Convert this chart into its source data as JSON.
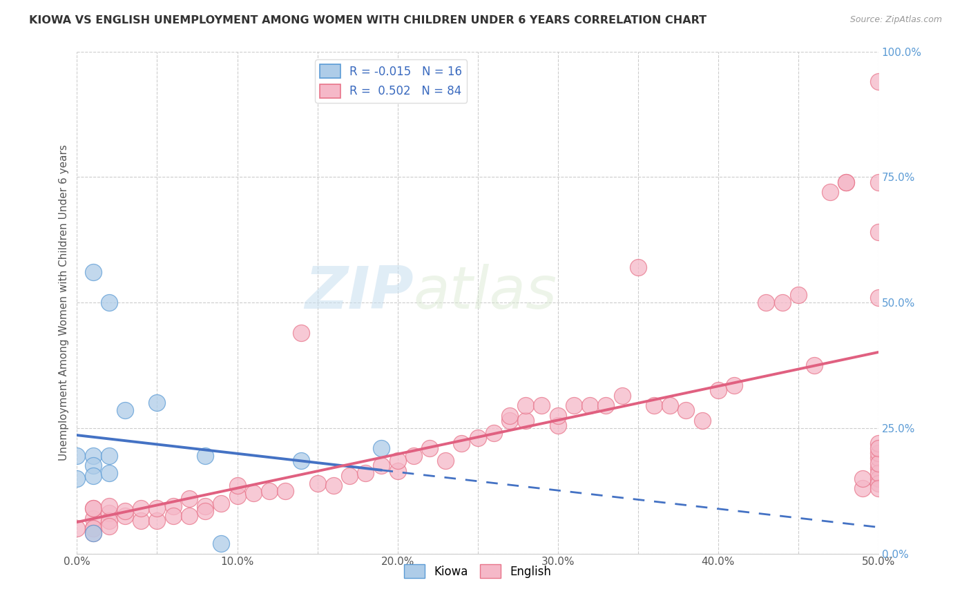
{
  "title": "KIOWA VS ENGLISH UNEMPLOYMENT AMONG WOMEN WITH CHILDREN UNDER 6 YEARS CORRELATION CHART",
  "source": "Source: ZipAtlas.com",
  "ylabel": "Unemployment Among Women with Children Under 6 years",
  "xlim": [
    0.0,
    0.5
  ],
  "ylim": [
    0.0,
    1.0
  ],
  "xtick_labels": [
    "0.0%",
    "",
    "10.0%",
    "",
    "20.0%",
    "",
    "30.0%",
    "",
    "40.0%",
    "",
    "50.0%"
  ],
  "xtick_vals": [
    0.0,
    0.05,
    0.1,
    0.15,
    0.2,
    0.25,
    0.3,
    0.35,
    0.4,
    0.45,
    0.5
  ],
  "ytick_labels": [
    "0.0%",
    "25.0%",
    "50.0%",
    "75.0%",
    "100.0%"
  ],
  "ytick_vals": [
    0.0,
    0.25,
    0.5,
    0.75,
    1.0
  ],
  "kiowa_color": "#aecce8",
  "english_color": "#f5b8c8",
  "kiowa_edge_color": "#5b9bd5",
  "english_edge_color": "#e8748a",
  "kiowa_line_color": "#4472c4",
  "english_line_color": "#e06080",
  "watermark_zip": "ZIP",
  "watermark_atlas": "atlas",
  "legend_r_kiowa": "-0.015",
  "legend_n_kiowa": "16",
  "legend_r_english": "0.502",
  "legend_n_english": "84",
  "kiowa_x": [
    0.01,
    0.02,
    0.0,
    0.0,
    0.01,
    0.01,
    0.01,
    0.01,
    0.02,
    0.02,
    0.03,
    0.05,
    0.08,
    0.09,
    0.14,
    0.19
  ],
  "kiowa_y": [
    0.56,
    0.5,
    0.195,
    0.15,
    0.195,
    0.175,
    0.155,
    0.04,
    0.195,
    0.16,
    0.285,
    0.3,
    0.195,
    0.02,
    0.185,
    0.21
  ],
  "english_x": [
    0.0,
    0.01,
    0.01,
    0.01,
    0.01,
    0.01,
    0.01,
    0.02,
    0.02,
    0.02,
    0.02,
    0.03,
    0.03,
    0.04,
    0.04,
    0.05,
    0.05,
    0.06,
    0.06,
    0.07,
    0.07,
    0.08,
    0.08,
    0.09,
    0.1,
    0.1,
    0.11,
    0.12,
    0.13,
    0.14,
    0.15,
    0.16,
    0.17,
    0.18,
    0.19,
    0.2,
    0.2,
    0.21,
    0.22,
    0.23,
    0.24,
    0.25,
    0.26,
    0.27,
    0.27,
    0.28,
    0.28,
    0.29,
    0.3,
    0.3,
    0.31,
    0.32,
    0.33,
    0.34,
    0.35,
    0.36,
    0.37,
    0.38,
    0.39,
    0.4,
    0.41,
    0.43,
    0.44,
    0.45,
    0.46,
    0.47,
    0.48,
    0.48,
    0.49,
    0.49,
    0.5,
    0.5,
    0.5,
    0.5,
    0.5,
    0.5,
    0.5,
    0.5,
    0.5,
    0.5,
    0.5,
    0.5,
    0.5,
    0.5
  ],
  "english_y": [
    0.05,
    0.05,
    0.07,
    0.09,
    0.09,
    0.05,
    0.04,
    0.08,
    0.065,
    0.055,
    0.095,
    0.075,
    0.085,
    0.065,
    0.09,
    0.065,
    0.09,
    0.095,
    0.075,
    0.11,
    0.075,
    0.095,
    0.085,
    0.1,
    0.115,
    0.135,
    0.12,
    0.125,
    0.125,
    0.44,
    0.14,
    0.135,
    0.155,
    0.16,
    0.175,
    0.165,
    0.185,
    0.195,
    0.21,
    0.185,
    0.22,
    0.23,
    0.24,
    0.265,
    0.275,
    0.265,
    0.295,
    0.295,
    0.255,
    0.275,
    0.295,
    0.295,
    0.295,
    0.315,
    0.57,
    0.295,
    0.295,
    0.285,
    0.265,
    0.325,
    0.335,
    0.5,
    0.5,
    0.515,
    0.375,
    0.72,
    0.74,
    0.74,
    0.13,
    0.15,
    0.51,
    0.64,
    0.74,
    0.94,
    0.17,
    0.19,
    0.2,
    0.15,
    0.22,
    0.14,
    0.16,
    0.13,
    0.18,
    0.21
  ]
}
